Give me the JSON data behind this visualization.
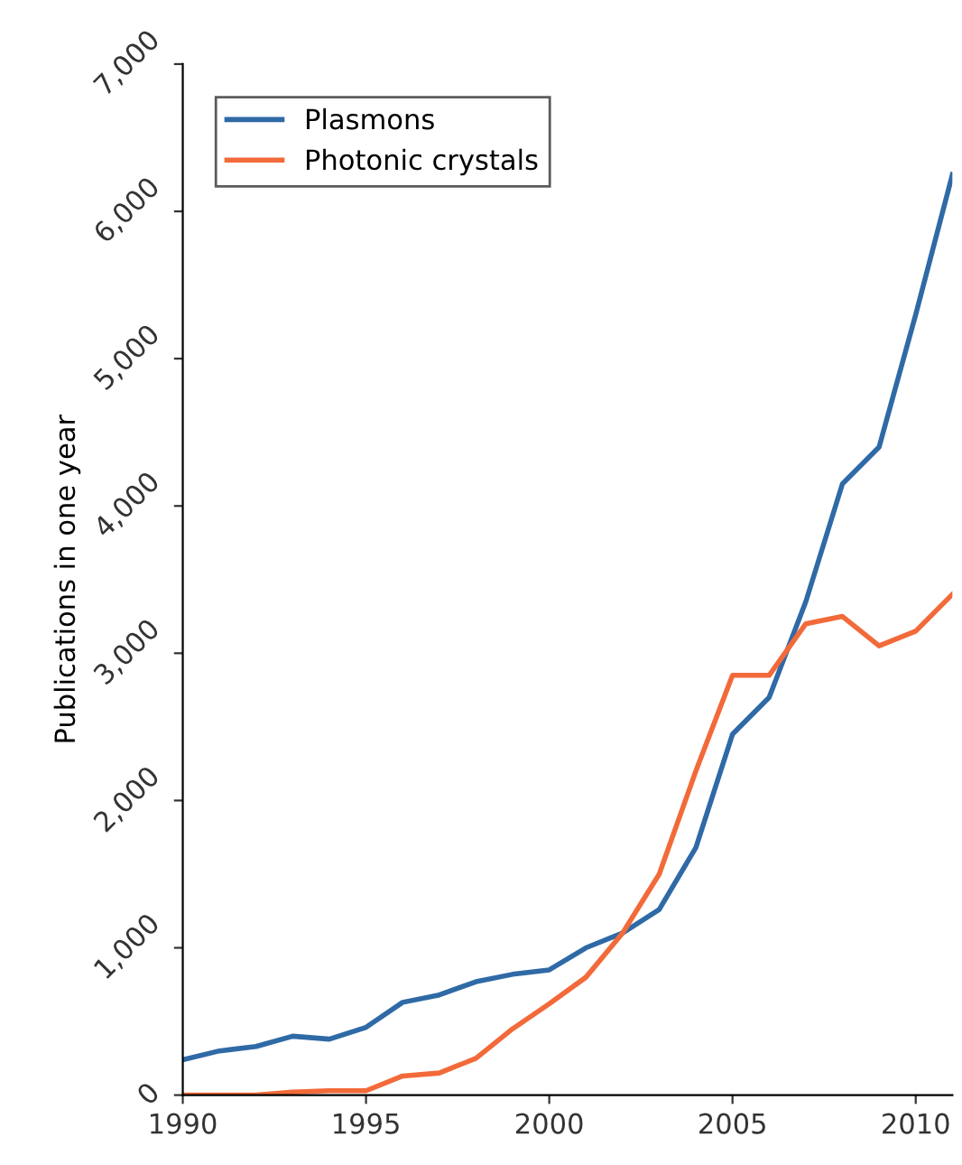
{
  "chart_data": {
    "type": "line",
    "ylabel": "Publications in one year",
    "x": [
      1990,
      1991,
      1992,
      1993,
      1994,
      1995,
      1996,
      1997,
      1998,
      1999,
      2000,
      2001,
      2002,
      2003,
      2004,
      2005,
      2006,
      2007,
      2008,
      2009,
      2010,
      2011
    ],
    "series": [
      {
        "name": "Plasmons",
        "color": "#2f6aa6",
        "values": [
          240,
          300,
          330,
          400,
          380,
          460,
          630,
          680,
          770,
          820,
          850,
          1000,
          1100,
          1260,
          1680,
          2450,
          2700,
          3350,
          4150,
          4400,
          5300,
          6250
        ]
      },
      {
        "name": "Photonic crystals",
        "color": "#f26a3a",
        "values": [
          0,
          0,
          0,
          20,
          30,
          30,
          130,
          150,
          250,
          450,
          620,
          800,
          1100,
          1500,
          2200,
          2850,
          2850,
          3200,
          3250,
          3050,
          3150,
          3400
        ]
      }
    ],
    "xlim": [
      1990,
      2011
    ],
    "xticks": [
      1990,
      1995,
      2000,
      2005,
      2010
    ],
    "ylim": [
      0,
      7000
    ],
    "yticks": [
      {
        "value": 0,
        "label": "0"
      },
      {
        "value": 1000,
        "label": "1,000"
      },
      {
        "value": 2000,
        "label": "2,000"
      },
      {
        "value": 3000,
        "label": "3,000"
      },
      {
        "value": 4000,
        "label": "4,000"
      },
      {
        "value": 5000,
        "label": "5,000"
      },
      {
        "value": 6000,
        "label": "6,000"
      },
      {
        "value": 7000,
        "label": "7,000"
      }
    ],
    "grid": false,
    "legend": "top left",
    "marker": "none",
    "line_style": "solid"
  }
}
